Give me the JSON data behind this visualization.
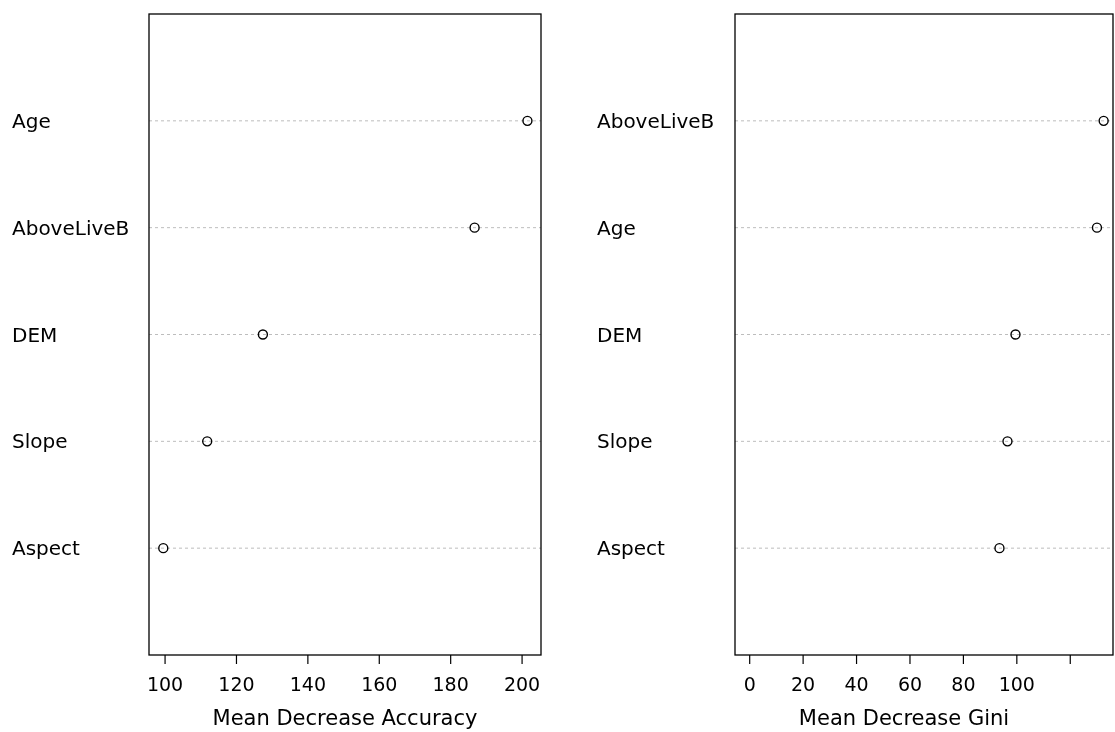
{
  "chart_data": [
    {
      "type": "scatter",
      "orientation": "horizontal",
      "categories": [
        "Age",
        "AboveLiveB",
        "DEM",
        "Slope",
        "Aspect"
      ],
      "values": [
        201.5,
        186.7,
        127.4,
        111.8,
        99.5
      ],
      "color": "#000000",
      "marker": "circle",
      "grid": "y",
      "xlim": [
        95.5,
        205.3
      ],
      "xticks": [
        100,
        120,
        140,
        160,
        180,
        200
      ],
      "xlabel": "Mean Decrease Accuracy"
    },
    {
      "type": "scatter",
      "orientation": "horizontal",
      "categories": [
        "AboveLiveB",
        "Age",
        "DEM",
        "Slope",
        "Aspect"
      ],
      "values": [
        132.5,
        130,
        99.5,
        96.5,
        93.5
      ],
      "color": "#000000",
      "marker": "circle",
      "grid": "y",
      "xlim": [
        -5.5,
        136
      ],
      "xticks": [
        0,
        20,
        40,
        60,
        80,
        100,
        {
          "value": 120,
          "label": null
        }
      ],
      "xlabel": "Mean Decrease Gini"
    }
  ]
}
